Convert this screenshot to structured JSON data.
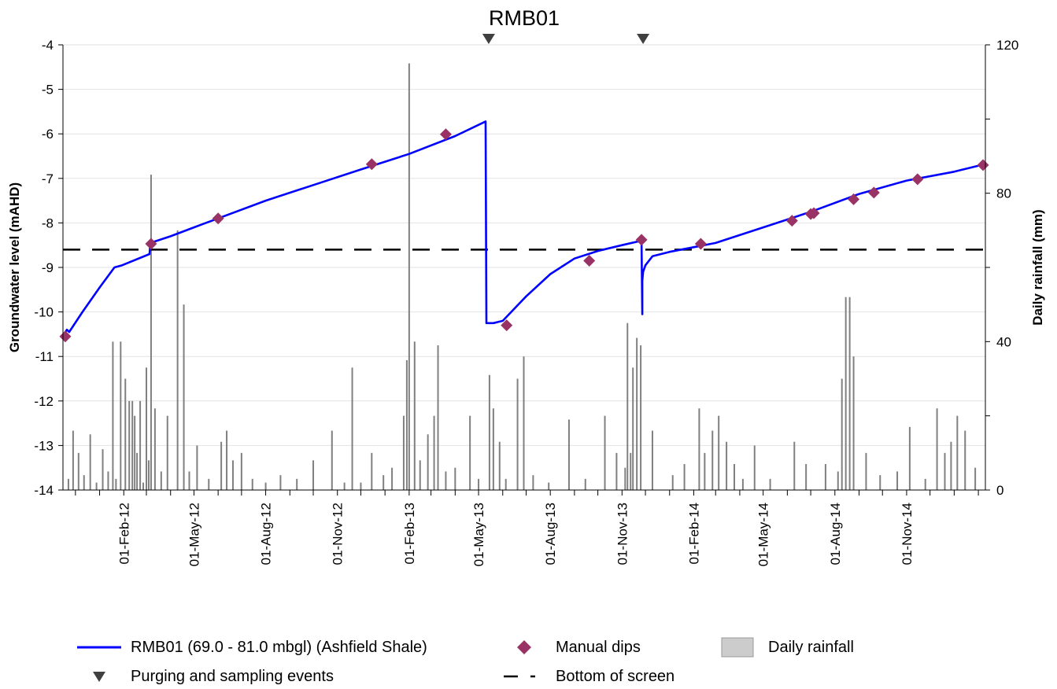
{
  "chart_data": {
    "type": "line",
    "title": "RMB01",
    "ylabel_left": "Groundwater level (mAHD)",
    "ylabel_right": "Daily rainfall (mm)",
    "ylim_left": [
      -14,
      -4
    ],
    "yticks_left": [
      "-4",
      "-5",
      "-6",
      "-7",
      "-8",
      "-9",
      "-10",
      "-11",
      "-12",
      "-13",
      "-14"
    ],
    "ylim_right": [
      0,
      120
    ],
    "yticks_right": [
      "120",
      "80",
      "40",
      "0"
    ],
    "xlim": [
      "2011-11-15",
      "2015-02-10"
    ],
    "xticks": [
      "01-Feb-12",
      "01-May-12",
      "01-Aug-12",
      "01-Nov-12",
      "01-Feb-13",
      "01-May-13",
      "01-Aug-13",
      "01-Nov-13",
      "01-Feb-14",
      "01-May-14",
      "01-Aug-14",
      "01-Nov-14"
    ],
    "grid": "horizontal",
    "legend_position": "bottom",
    "groundwater_series": {
      "name": "RMB01 (69.0 - 81.0 mbgl) (Ashfield Shale)",
      "color": "#0000ff",
      "x": [
        "2011-11-16",
        "2011-11-20",
        "2011-11-23",
        "2011-12-10",
        "2012-01-01",
        "2012-01-20",
        "2012-01-30",
        "2012-03-05",
        "2012-03-06",
        "2012-04-01",
        "2012-05-01",
        "2012-06-01",
        "2012-08-01",
        "2012-10-01",
        "2012-12-01",
        "2013-02-01",
        "2013-04-01",
        "2013-05-10",
        "2013-05-11",
        "2013-05-20",
        "2013-06-01",
        "2013-07-01",
        "2013-08-01",
        "2013-09-01",
        "2013-10-01",
        "2013-11-01",
        "2013-11-26",
        "2013-11-27",
        "2013-11-27",
        "2013-11-28",
        "2013-12-01",
        "2013-12-10",
        "2014-01-01",
        "2014-03-01",
        "2014-05-01",
        "2014-07-01",
        "2014-09-01",
        "2014-11-01",
        "2015-01-01",
        "2015-02-05"
      ],
      "y": [
        -10.5,
        -10.4,
        -10.45,
        -10.0,
        -9.45,
        -9.0,
        -8.95,
        -8.7,
        -8.45,
        -8.3,
        -8.1,
        -7.9,
        -7.5,
        -7.15,
        -6.8,
        -6.45,
        -6.05,
        -5.72,
        -10.25,
        -10.25,
        -10.2,
        -9.65,
        -9.15,
        -8.8,
        -8.63,
        -8.5,
        -8.4,
        -10.05,
        -9.3,
        -9.1,
        -8.95,
        -8.75,
        -8.65,
        -8.45,
        -8.1,
        -7.75,
        -7.35,
        -7.05,
        -6.85,
        -6.7
      ]
    },
    "manual_dips": {
      "name": "Manual dips",
      "color": "#993366",
      "x": [
        "2011-11-18",
        "2012-03-07",
        "2012-06-01",
        "2012-12-15",
        "2013-03-20",
        "2013-06-06",
        "2013-09-20",
        "2013-11-26",
        "2014-02-10",
        "2014-06-07",
        "2014-07-01",
        "2014-07-05",
        "2014-08-25",
        "2014-09-20",
        "2014-11-15",
        "2015-02-07"
      ],
      "y": [
        -10.55,
        -8.47,
        -7.9,
        -6.68,
        -6.01,
        -10.3,
        -8.85,
        -8.38,
        -8.47,
        -7.95,
        -7.8,
        -7.78,
        -7.47,
        -7.32,
        -7.02,
        -6.7
      ]
    },
    "purging_sampling_events": {
      "name": "Purging and sampling events",
      "color": "#404040",
      "x": [
        "2013-05-14",
        "2013-11-28"
      ]
    },
    "bottom_of_screen": {
      "name": "Bottom of screen",
      "color": "#000000",
      "y": -8.6
    },
    "daily_rainfall": {
      "name": "Daily rainfall",
      "color": "#808080",
      "x": [
        "2011-11-22",
        "2011-11-28",
        "2011-12-05",
        "2011-12-12",
        "2011-12-20",
        "2011-12-28",
        "2012-01-05",
        "2012-01-12",
        "2012-01-18",
        "2012-01-22",
        "2012-01-28",
        "2012-02-03",
        "2012-02-08",
        "2012-02-12",
        "2012-02-15",
        "2012-02-18",
        "2012-02-22",
        "2012-02-26",
        "2012-03-01",
        "2012-03-04",
        "2012-03-07",
        "2012-03-12",
        "2012-03-20",
        "2012-03-28",
        "2012-04-10",
        "2012-04-18",
        "2012-04-25",
        "2012-05-05",
        "2012-05-20",
        "2012-06-05",
        "2012-06-12",
        "2012-06-20",
        "2012-07-01",
        "2012-07-15",
        "2012-08-01",
        "2012-08-20",
        "2012-09-10",
        "2012-10-01",
        "2012-10-25",
        "2012-11-10",
        "2012-11-20",
        "2012-12-01",
        "2012-12-15",
        "2012-12-30",
        "2013-01-10",
        "2013-01-25",
        "2013-01-29",
        "2013-02-01",
        "2013-02-08",
        "2013-02-15",
        "2013-02-25",
        "2013-03-05",
        "2013-03-10",
        "2013-03-20",
        "2013-04-01",
        "2013-04-20",
        "2013-05-01",
        "2013-05-15",
        "2013-05-20",
        "2013-05-28",
        "2013-06-05",
        "2013-06-20",
        "2013-06-28",
        "2013-07-10",
        "2013-07-30",
        "2013-08-25",
        "2013-09-15",
        "2013-10-10",
        "2013-10-25",
        "2013-11-05",
        "2013-11-08",
        "2013-11-12",
        "2013-11-15",
        "2013-11-20",
        "2013-11-25",
        "2013-12-10",
        "2014-01-05",
        "2014-01-20",
        "2014-02-08",
        "2014-02-15",
        "2014-02-25",
        "2014-03-05",
        "2014-03-15",
        "2014-03-25",
        "2014-04-05",
        "2014-04-20",
        "2014-05-10",
        "2014-06-10",
        "2014-06-25",
        "2014-07-20",
        "2014-08-05",
        "2014-08-10",
        "2014-08-15",
        "2014-08-20",
        "2014-08-25",
        "2014-09-10",
        "2014-09-28",
        "2014-10-20",
        "2014-11-05",
        "2014-11-25",
        "2014-12-10",
        "2014-12-20",
        "2014-12-28",
        "2015-01-05",
        "2015-01-15",
        "2015-01-28"
      ],
      "values": [
        3,
        16,
        10,
        4,
        15,
        2,
        11,
        5,
        40,
        3,
        40,
        30,
        24,
        24,
        20,
        10,
        24,
        2,
        33,
        8,
        85,
        22,
        5,
        20,
        70,
        50,
        5,
        12,
        3,
        13,
        16,
        8,
        10,
        3,
        2,
        4,
        3,
        8,
        16,
        2,
        33,
        2,
        10,
        4,
        6,
        20,
        35,
        115,
        40,
        8,
        15,
        20,
        39,
        5,
        6,
        20,
        3,
        31,
        22,
        13,
        3,
        30,
        36,
        4,
        2,
        19,
        3,
        20,
        10,
        6,
        45,
        10,
        33,
        41,
        39,
        16,
        4,
        7,
        22,
        10,
        16,
        20,
        13,
        7,
        3,
        12,
        3,
        13,
        7,
        7,
        5,
        30,
        52,
        52,
        36,
        10,
        4,
        5,
        17,
        3,
        22,
        10,
        13,
        20,
        16,
        6
      ]
    }
  },
  "legend": {
    "groundwater_label": "RMB01 (69.0 - 81.0 mbgl) (Ashfield Shale)",
    "manual_dips_label": "Manual dips",
    "rainfall_label": "Daily rainfall",
    "purging_label": "Purging and sampling events",
    "bottom_screen_label": "Bottom of screen"
  }
}
